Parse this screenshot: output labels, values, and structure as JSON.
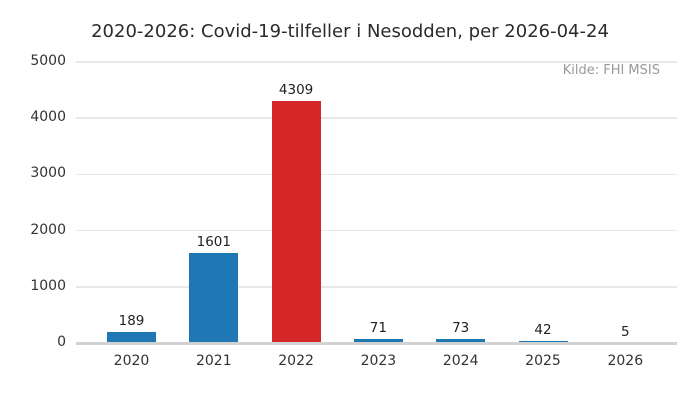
{
  "title": "2020-2026: Covid-19-tilfeller i Nesodden, per 2026-04-24",
  "source_note": "Kilde: FHI MSIS",
  "colors": {
    "background": "#ffffff",
    "bar_blue": "#1f77b4",
    "bar_red": "#d62728",
    "gridline": "#e8e8e8",
    "baseline": "#d2d2d2",
    "title_text": "#2b2b2b",
    "tick_text": "#333333",
    "value_label_text": "#222222",
    "source_text": "#999999"
  },
  "chart_data": {
    "type": "bar",
    "title": "2020-2026: Covid-19-tilfeller i Nesodden, per 2026-04-24",
    "categories": [
      "2020",
      "2021",
      "2022",
      "2023",
      "2024",
      "2025",
      "2026"
    ],
    "values": [
      189,
      1601,
      4309,
      71,
      73,
      42,
      5
    ],
    "bar_colors": [
      "#1f77b4",
      "#1f77b4",
      "#d62728",
      "#1f77b4",
      "#1f77b4",
      "#1f77b4",
      "#1f77b4"
    ],
    "value_labels": [
      189,
      1601,
      4309,
      71,
      73,
      42,
      5
    ],
    "xlabel": "",
    "ylabel": "",
    "ylim": [
      0,
      5000
    ],
    "yticks": [
      0,
      1000,
      2000,
      3000,
      4000,
      5000
    ],
    "grid": "horizontal",
    "legend": "none",
    "annotations": [
      "Kilde: FHI MSIS"
    ]
  }
}
